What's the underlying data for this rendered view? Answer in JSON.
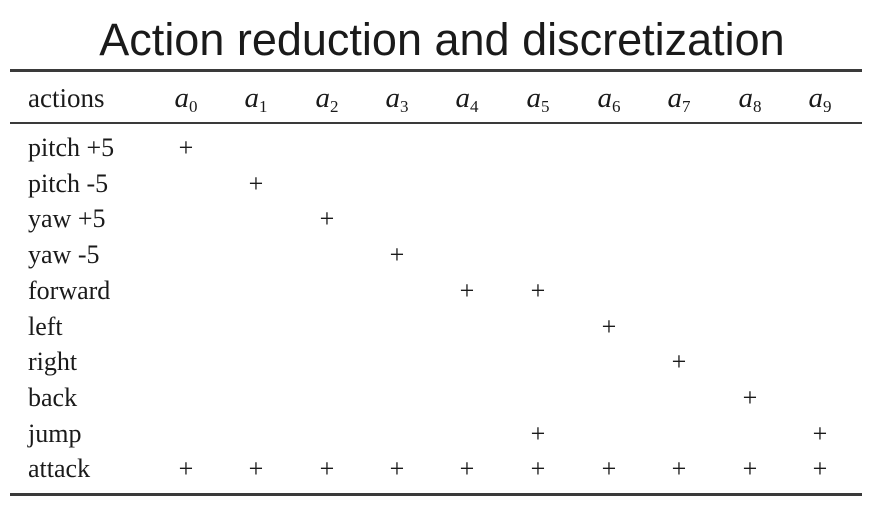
{
  "title": "Action reduction and discretization",
  "table": {
    "corner_label": "actions",
    "columns": [
      {
        "base": "a",
        "sub": "0"
      },
      {
        "base": "a",
        "sub": "1"
      },
      {
        "base": "a",
        "sub": "2"
      },
      {
        "base": "a",
        "sub": "3"
      },
      {
        "base": "a",
        "sub": "4"
      },
      {
        "base": "a",
        "sub": "5"
      },
      {
        "base": "a",
        "sub": "6"
      },
      {
        "base": "a",
        "sub": "7"
      },
      {
        "base": "a",
        "sub": "8"
      },
      {
        "base": "a",
        "sub": "9"
      }
    ],
    "mark_symbol": "+",
    "rows": [
      {
        "label": "pitch +5",
        "marks": [
          0
        ]
      },
      {
        "label": "pitch -5",
        "marks": [
          1
        ]
      },
      {
        "label": "yaw +5",
        "marks": [
          2
        ]
      },
      {
        "label": "yaw -5",
        "marks": [
          3
        ]
      },
      {
        "label": "forward",
        "marks": [
          4,
          5
        ]
      },
      {
        "label": "left",
        "marks": [
          6
        ]
      },
      {
        "label": "right",
        "marks": [
          7
        ]
      },
      {
        "label": "back",
        "marks": [
          8
        ]
      },
      {
        "label": "jump",
        "marks": [
          5,
          9
        ]
      },
      {
        "label": "attack",
        "marks": [
          0,
          1,
          2,
          3,
          4,
          5,
          6,
          7,
          8,
          9
        ]
      }
    ]
  }
}
